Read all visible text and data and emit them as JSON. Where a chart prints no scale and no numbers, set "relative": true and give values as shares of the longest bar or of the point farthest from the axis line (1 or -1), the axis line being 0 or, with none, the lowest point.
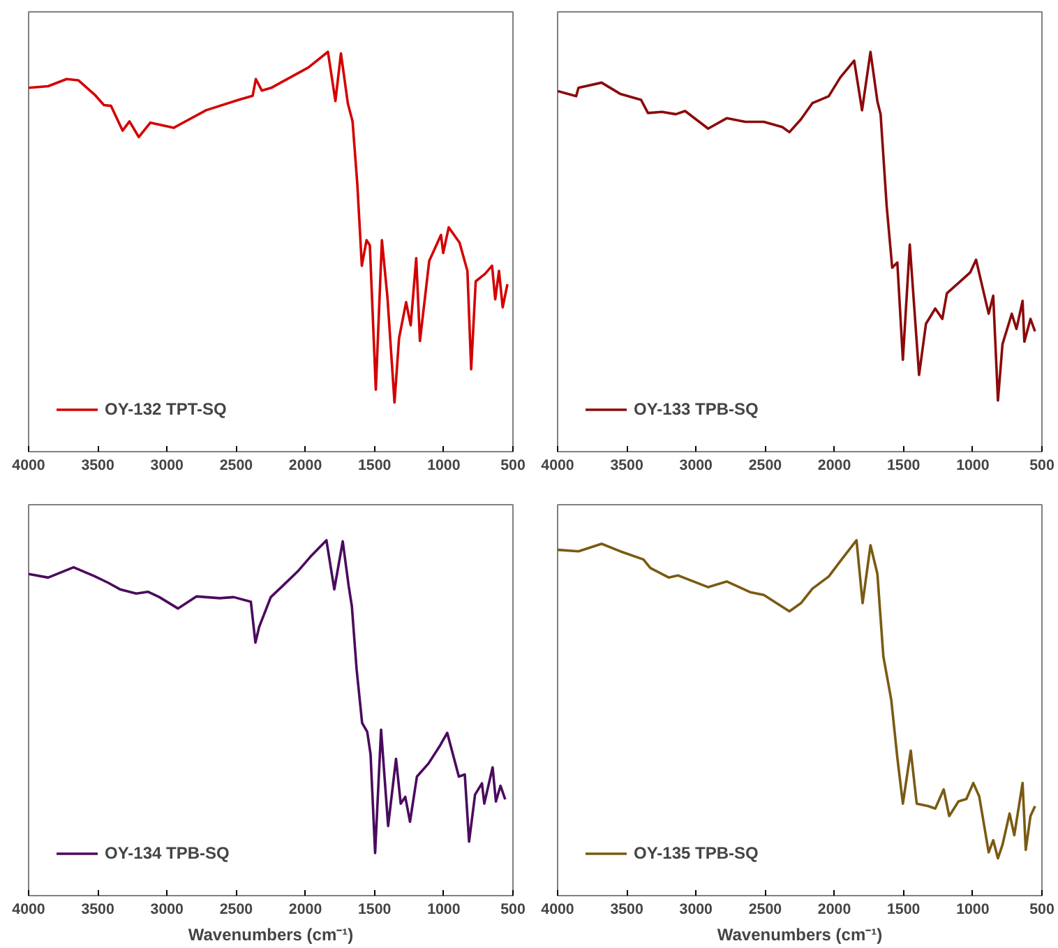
{
  "chart_data": [
    {
      "type": "line",
      "relative": true,
      "xlim": [
        4000,
        500
      ],
      "xticks": [
        4000,
        3500,
        3000,
        2500,
        2000,
        1500,
        1000,
        500
      ],
      "tick_labels": "x",
      "grid": false,
      "legend": "bottom left",
      "series": [
        {
          "name": "OY-132 TPT-SQ",
          "color": "#d40000",
          "x": [
            4000,
            3859,
            3725,
            3641,
            3523,
            3456,
            3405,
            3321,
            3271,
            3204,
            3120,
            2952,
            2717,
            2482,
            2381,
            2358,
            2314,
            2247,
            2146,
            1978,
            1837,
            1783,
            1743,
            1693,
            1659,
            1625,
            1592,
            1558,
            1534,
            1491,
            1447,
            1407,
            1356,
            1323,
            1272,
            1239,
            1199,
            1172,
            1105,
            1020,
            1004,
            964,
            886,
            829,
            802,
            769,
            701,
            651,
            628,
            601,
            574,
            540
          ],
          "values": [
            0.91,
            0.914,
            0.932,
            0.929,
            0.893,
            0.867,
            0.865,
            0.803,
            0.826,
            0.787,
            0.823,
            0.81,
            0.854,
            0.88,
            0.89,
            0.932,
            0.903,
            0.91,
            0.929,
            0.961,
            1.0,
            0.877,
            0.996,
            0.871,
            0.826,
            0.671,
            0.465,
            0.529,
            0.516,
            0.155,
            0.529,
            0.387,
            0.123,
            0.284,
            0.374,
            0.316,
            0.484,
            0.277,
            0.477,
            0.542,
            0.497,
            0.561,
            0.523,
            0.452,
            0.206,
            0.426,
            0.445,
            0.465,
            0.381,
            0.452,
            0.361,
            0.419
          ]
        }
      ]
    },
    {
      "type": "line",
      "relative": true,
      "xlim": [
        4000,
        500
      ],
      "xticks": [
        4000,
        3500,
        3000,
        2500,
        2000,
        1500,
        1000,
        500
      ],
      "tick_labels": "x",
      "grid": false,
      "legend": "bottom left",
      "series": [
        {
          "name": "OY-133 TPB-SQ",
          "color": "#8b0a0a",
          "x": [
            4000,
            3866,
            3849,
            3682,
            3548,
            3397,
            3347,
            3246,
            3146,
            3079,
            2912,
            2778,
            2644,
            2510,
            2376,
            2325,
            2242,
            2158,
            2041,
            1957,
            1857,
            1800,
            1739,
            1689,
            1666,
            1622,
            1582,
            1545,
            1505,
            1455,
            1388,
            1338,
            1271,
            1220,
            1187,
            1103,
            1019,
            976,
            885,
            852,
            818,
            785,
            718,
            684,
            640,
            627,
            583,
            550
          ],
          "values": [
            0.902,
            0.889,
            0.91,
            0.923,
            0.895,
            0.88,
            0.847,
            0.85,
            0.844,
            0.852,
            0.808,
            0.834,
            0.825,
            0.825,
            0.812,
            0.799,
            0.831,
            0.872,
            0.889,
            0.936,
            0.978,
            0.854,
            1.0,
            0.876,
            0.844,
            0.614,
            0.46,
            0.473,
            0.23,
            0.518,
            0.192,
            0.32,
            0.358,
            0.332,
            0.396,
            0.422,
            0.448,
            0.48,
            0.345,
            0.39,
            0.128,
            0.269,
            0.345,
            0.307,
            0.377,
            0.275,
            0.332,
            0.301
          ]
        }
      ]
    },
    {
      "type": "line",
      "relative": true,
      "xlim": [
        4000,
        500
      ],
      "xticks": [
        4000,
        3500,
        3000,
        2500,
        2000,
        1500,
        1000,
        500
      ],
      "tick_labels": "x",
      "grid": false,
      "legend": "bottom left",
      "xlabel": "Wavenumbers (cm⁻¹)",
      "series": [
        {
          "name": "OY-134 TPB-SQ",
          "color": "#4b0a5e",
          "x": [
            4000,
            3859,
            3675,
            3524,
            3423,
            3340,
            3222,
            3138,
            3055,
            2921,
            2786,
            2619,
            2518,
            2394,
            2361,
            2334,
            2250,
            2166,
            2049,
            1965,
            1848,
            1791,
            1730,
            1687,
            1664,
            1630,
            1590,
            1553,
            1529,
            1496,
            1453,
            1402,
            1345,
            1311,
            1278,
            1244,
            1194,
            1110,
            1026,
            975,
            891,
            848,
            817,
            774,
            724,
            707,
            647,
            623,
            590,
            556
          ],
          "values": [
            0.905,
            0.895,
            0.924,
            0.899,
            0.88,
            0.862,
            0.85,
            0.855,
            0.84,
            0.808,
            0.842,
            0.837,
            0.84,
            0.827,
            0.712,
            0.756,
            0.84,
            0.871,
            0.915,
            0.953,
            1.0,
            0.862,
            0.997,
            0.871,
            0.814,
            0.638,
            0.486,
            0.461,
            0.398,
            0.12,
            0.467,
            0.196,
            0.385,
            0.259,
            0.278,
            0.208,
            0.335,
            0.372,
            0.423,
            0.458,
            0.335,
            0.341,
            0.152,
            0.284,
            0.316,
            0.259,
            0.361,
            0.265,
            0.309,
            0.271
          ]
        }
      ]
    },
    {
      "type": "line",
      "relative": true,
      "xlim": [
        4000,
        500
      ],
      "xticks": [
        4000,
        3500,
        3000,
        2500,
        2000,
        1500,
        1000,
        500
      ],
      "tick_labels": "x",
      "grid": false,
      "legend": "bottom left",
      "xlabel": "Wavenumbers (cm⁻¹)",
      "series": [
        {
          "name": "OY-135 TPB-SQ",
          "color": "#7a5a12",
          "x": [
            4000,
            3849,
            3682,
            3548,
            3380,
            3330,
            3196,
            3129,
            2912,
            2778,
            2610,
            2510,
            2325,
            2242,
            2158,
            2041,
            1957,
            1840,
            1796,
            1739,
            1689,
            1646,
            1589,
            1545,
            1505,
            1448,
            1405,
            1321,
            1271,
            1210,
            1170,
            1103,
            1046,
            996,
            953,
            885,
            852,
            818,
            785,
            734,
            700,
            640,
            617,
            583,
            550
          ],
          "values": [
            0.973,
            0.969,
            0.99,
            0.969,
            0.946,
            0.922,
            0.895,
            0.901,
            0.868,
            0.884,
            0.854,
            0.846,
            0.8,
            0.823,
            0.864,
            0.898,
            0.941,
            1.0,
            0.823,
            0.986,
            0.905,
            0.673,
            0.551,
            0.388,
            0.259,
            0.408,
            0.259,
            0.252,
            0.245,
            0.299,
            0.224,
            0.265,
            0.272,
            0.317,
            0.279,
            0.122,
            0.156,
            0.105,
            0.143,
            0.231,
            0.17,
            0.317,
            0.129,
            0.224,
            0.252
          ]
        }
      ]
    }
  ]
}
